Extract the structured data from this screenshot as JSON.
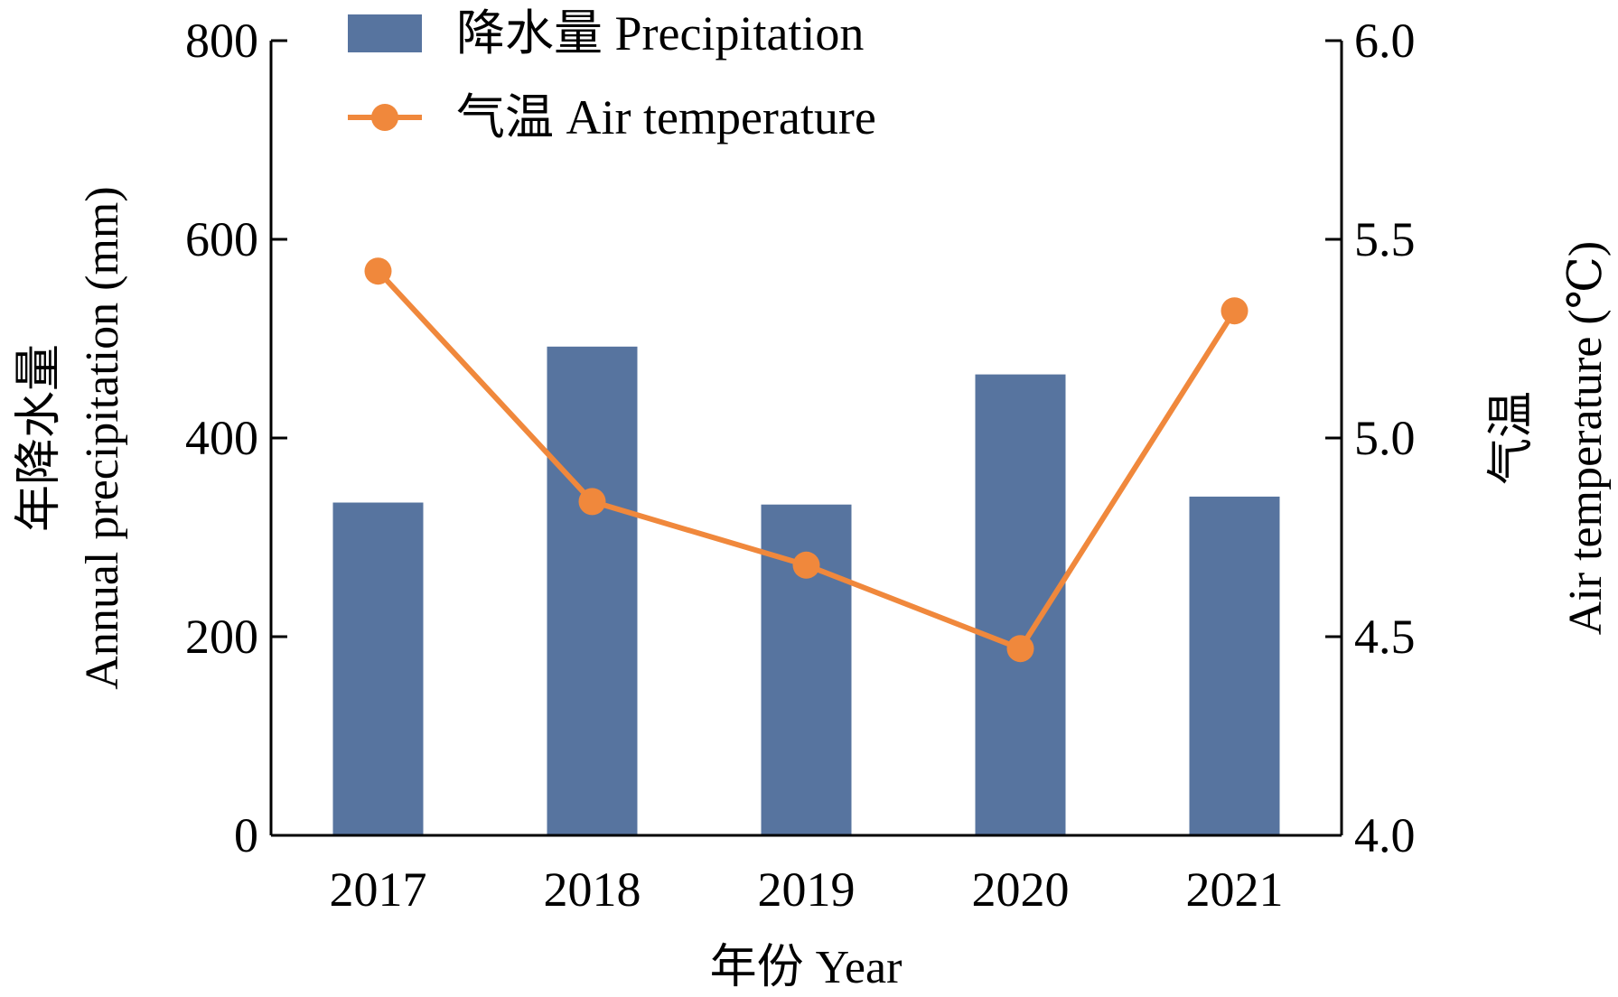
{
  "chart_data": {
    "type": "bar+line",
    "categories": [
      "2017",
      "2018",
      "2019",
      "2020",
      "2021"
    ],
    "series": [
      {
        "name": "降水量 Precipitation",
        "type": "bar",
        "axis": "left",
        "values": [
          335,
          492,
          333,
          464,
          341
        ],
        "color": "#57749f"
      },
      {
        "name": "气温 Air temperature",
        "type": "line",
        "axis": "right",
        "values": [
          5.42,
          4.84,
          4.68,
          4.47,
          5.32
        ],
        "color": "#f0883c"
      }
    ],
    "xlabel": "年份 Year",
    "ylabel_left": [
      "年降水量",
      "Annual precipitation (mm)"
    ],
    "ylabel_right": [
      "气温",
      "Air temperature (℃)"
    ],
    "ylim_left": [
      0,
      800
    ],
    "yticks_left": [
      "0",
      "200",
      "400",
      "600",
      "800"
    ],
    "ylim_right": [
      4.0,
      6.0
    ],
    "yticks_right": [
      "4.0",
      "4.5",
      "5.0",
      "5.5",
      "6.0"
    ],
    "grid": false,
    "legend_position": "top-left"
  }
}
